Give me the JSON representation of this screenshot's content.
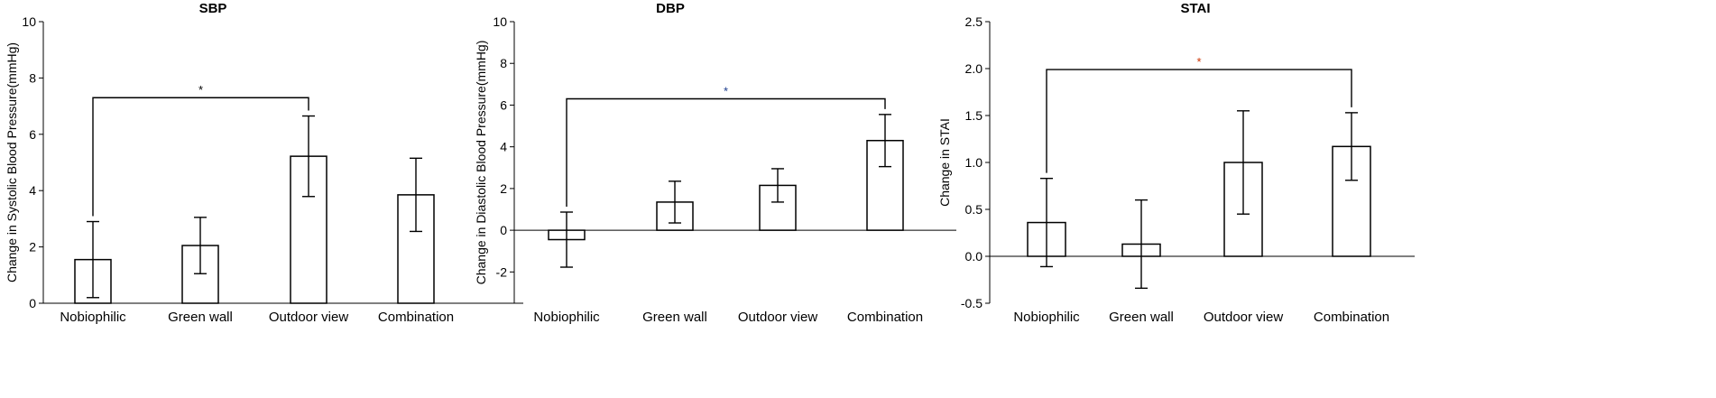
{
  "chart_data": [
    {
      "type": "bar",
      "title": "SBP",
      "ylabel": "Change in Systolic Blood Pressure(mmHg)",
      "xlabel": "",
      "categories": [
        "Nobiophilic",
        "Green wall",
        "Outdoor view",
        "Combination"
      ],
      "values": [
        1.55,
        2.05,
        5.22,
        3.85
      ],
      "error": [
        1.35,
        1.0,
        1.43,
        1.3
      ],
      "ylim": [
        0,
        10
      ],
      "yticks": [
        0,
        2,
        4,
        6,
        8,
        10
      ],
      "ytick_labels": [
        "0",
        "2",
        "4",
        "6",
        "8",
        "10"
      ],
      "grid": false,
      "significance": [
        {
          "from": 0,
          "to": 2,
          "y": 7.3,
          "label": "*",
          "color": "#000000"
        }
      ]
    },
    {
      "type": "bar",
      "title": "DBP",
      "ylabel": "Change in Diastolic Blood Pressure(mmHg)",
      "xlabel": "",
      "categories": [
        "Nobiophilic",
        "Green wall",
        "Outdoor view",
        "Combination"
      ],
      "values": [
        -0.45,
        1.35,
        2.15,
        4.3
      ],
      "error": [
        1.32,
        1.0,
        0.8,
        1.25
      ],
      "ylim": [
        -3.5,
        10
      ],
      "yticks": [
        -2,
        0,
        2,
        4,
        6,
        8,
        10
      ],
      "ytick_labels": [
        "-2",
        "0",
        "2",
        "4",
        "6",
        "8",
        "10"
      ],
      "grid": false,
      "significance": [
        {
          "from": 0,
          "to": 3,
          "y": 6.3,
          "label": "*",
          "color": "#1f3f8f"
        }
      ]
    },
    {
      "type": "bar",
      "title": "STAI",
      "ylabel": "Change in STAI",
      "xlabel": "",
      "categories": [
        "Nobiophilic",
        "Green wall",
        "Outdoor view",
        "Combination"
      ],
      "values": [
        0.36,
        0.13,
        1.0,
        1.17
      ],
      "error": [
        0.47,
        0.47,
        0.55,
        0.36
      ],
      "ylim": [
        -0.5,
        2.5
      ],
      "yticks": [
        -0.5,
        0.0,
        0.5,
        1.0,
        1.5,
        2.0,
        2.5
      ],
      "ytick_labels": [
        "-0.5",
        "0.0",
        "0.5",
        "1.0",
        "1.5",
        "2.0",
        "2.5"
      ],
      "grid": false,
      "significance": [
        {
          "from": 0,
          "to": 3,
          "y": 1.99,
          "label": "*",
          "color": "#cc3300"
        }
      ]
    }
  ]
}
